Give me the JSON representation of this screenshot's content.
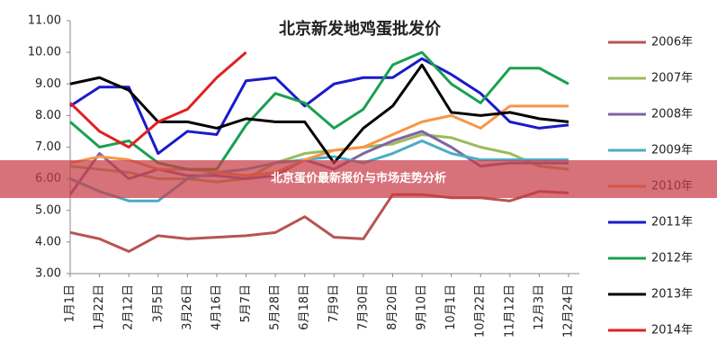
{
  "chart_data": {
    "type": "line",
    "title": "北京新发地鸡蛋批发价",
    "categories": [
      "1月1日",
      "1月22日",
      "2月12日",
      "3月5日",
      "3月26日",
      "4月16日",
      "5月7日",
      "5月28日",
      "6月18日",
      "7月9日",
      "7月30日",
      "8月20日",
      "9月10日",
      "10月1日",
      "10月22日",
      "11月12日",
      "12月3日",
      "12月24日"
    ],
    "series": [
      {
        "name": "2006年",
        "color": "#b85450",
        "values": [
          4.3,
          4.1,
          3.7,
          4.2,
          4.1,
          4.15,
          4.2,
          4.3,
          4.8,
          4.15,
          4.1,
          5.5,
          5.5,
          5.4,
          5.4,
          5.3,
          5.6,
          5.55
        ]
      },
      {
        "name": "2007年",
        "color": "#9bbb59",
        "values": [
          6.4,
          6.3,
          6.2,
          6.0,
          6.0,
          5.9,
          6.0,
          6.5,
          6.8,
          6.9,
          7.0,
          7.1,
          7.4,
          7.3,
          7.0,
          6.8,
          6.4,
          6.3
        ]
      },
      {
        "name": "2008年",
        "color": "#8064a2",
        "values": [
          5.5,
          6.8,
          6.0,
          6.3,
          6.1,
          6.1,
          6.0,
          6.1,
          6.6,
          6.3,
          6.8,
          7.2,
          7.5,
          7.0,
          6.4,
          6.5,
          6.5,
          6.5
        ]
      },
      {
        "name": "2009年",
        "color": "#4bacc6",
        "values": [
          6.0,
          5.6,
          5.3,
          5.3,
          6.0,
          6.2,
          6.3,
          6.5,
          6.6,
          6.7,
          6.5,
          6.8,
          7.2,
          6.8,
          6.6,
          6.6,
          6.6,
          6.6
        ]
      },
      {
        "name": "2010年",
        "color": "#f79646",
        "values": [
          6.5,
          6.7,
          6.6,
          6.3,
          6.3,
          6.2,
          6.1,
          6.2,
          6.6,
          6.9,
          7.0,
          7.4,
          7.8,
          8.0,
          7.6,
          8.3,
          8.3,
          8.3
        ]
      },
      {
        "name": "2011年",
        "color": "#1a1acc",
        "values": [
          8.3,
          8.9,
          8.9,
          6.8,
          7.5,
          7.4,
          9.1,
          9.2,
          8.3,
          9.0,
          9.2,
          9.2,
          9.8,
          9.3,
          8.7,
          7.8,
          7.6,
          7.7
        ]
      },
      {
        "name": "2012年",
        "color": "#1aa050",
        "values": [
          7.8,
          7.0,
          7.2,
          6.5,
          6.3,
          6.3,
          7.7,
          8.7,
          8.4,
          7.6,
          8.2,
          9.6,
          10.0,
          9.0,
          8.4,
          9.5,
          9.5,
          9.0
        ]
      },
      {
        "name": "2013年",
        "color": "#000000",
        "values": [
          9.0,
          9.2,
          8.8,
          7.8,
          7.8,
          7.6,
          7.9,
          7.8,
          7.8,
          6.5,
          7.6,
          8.3,
          9.6,
          8.1,
          8.0,
          8.1,
          7.9,
          7.8
        ]
      },
      {
        "name": "2014年",
        "color": "#e02020",
        "values": [
          8.4,
          7.5,
          7.0,
          7.8,
          8.2,
          9.2,
          10.0,
          null,
          null,
          null,
          null,
          null,
          null,
          null,
          null,
          null,
          null,
          null
        ]
      }
    ],
    "ylim": [
      3,
      11
    ],
    "yticks": [
      {
        "value": 3,
        "label": "3.00"
      },
      {
        "value": 4,
        "label": "4.00"
      },
      {
        "value": 5,
        "label": "5.00"
      },
      {
        "value": 6,
        "label": "6.00"
      },
      {
        "value": 7,
        "label": "7.00"
      },
      {
        "value": 8,
        "label": "8.00"
      },
      {
        "value": 9,
        "label": "9.00"
      },
      {
        "value": 10,
        "label": "10.00"
      },
      {
        "value": 11,
        "label": "11.00"
      }
    ],
    "legend": "right",
    "grid": false
  },
  "banner": {
    "text": "北京蛋价最新报价与市场走势分析"
  }
}
